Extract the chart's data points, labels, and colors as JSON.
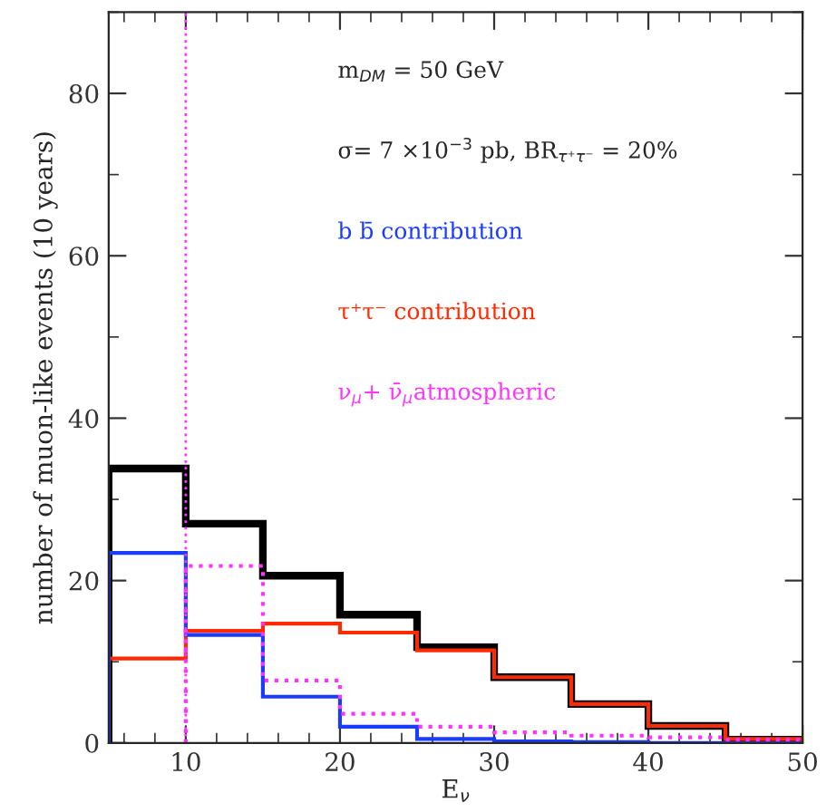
{
  "chart_data": {
    "type": "histogram",
    "xlabel": "E$_{ν}$",
    "ylabel": "number of muon-like events (10 years)",
    "bins": [
      5,
      10,
      15,
      20,
      25,
      30,
      35,
      40,
      45,
      50
    ],
    "series": [
      {
        "color": "#000000",
        "values": [
          33.8,
          27.0,
          20.6,
          15.8,
          11.8,
          8.1,
          4.8,
          2.1,
          0.4
        ]
      },
      {
        "name": "τ⁺τ⁻ contribution",
        "color": "#ff2a00",
        "values": [
          10.4,
          13.8,
          14.7,
          13.6,
          11.4,
          8.1,
          4.8,
          2.1,
          0.5
        ]
      },
      {
        "name": "b b̄ contribution",
        "color": "#1a3cff",
        "values": [
          23.4,
          13.3,
          5.7,
          2.0,
          0.5,
          0.2,
          0.1,
          0,
          0
        ]
      },
      {
        "name": "ν$_{μ}$+ ν̄$_{μ}$atmospheric",
        "color": "#ff33ff",
        "line_style": "dotted",
        "bins": [
          10,
          15,
          20,
          25,
          30,
          35,
          40,
          45,
          50
        ],
        "values": [
          21.8,
          7.7,
          3.6,
          2.0,
          1.3,
          0.9,
          0.7,
          0.4
        ]
      }
    ],
    "ref_lines": [
      {
        "axis": "x",
        "value": 10,
        "color": "#ff33ff",
        "line_style": "dotted"
      }
    ],
    "annotations": [
      "m$_{DM}$ = 50 GeV",
      "σ= 7 ×10$^{−3}$ pb, BR$_{τ⁺τ⁻}$ = 20%"
    ],
    "xlim": [
      5,
      50
    ],
    "ylim": [
      0,
      90
    ],
    "xticks": [
      10,
      20,
      30,
      40,
      50
    ],
    "yticks": [
      0,
      20,
      40,
      60,
      80
    ],
    "grid": false
  }
}
